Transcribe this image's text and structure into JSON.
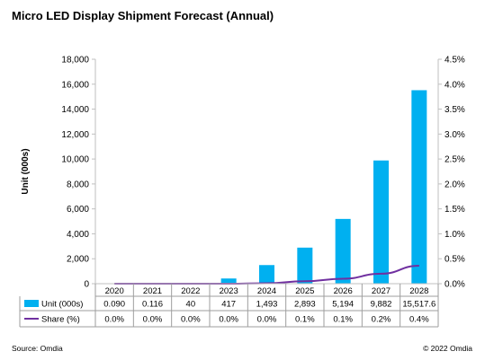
{
  "page": {
    "title": "Micro LED Display Shipment Forecast (Annual)",
    "source": "Source: Omdia",
    "copyright": "© 2022 Omdia"
  },
  "chart_data": {
    "type": "bar",
    "years": [
      "2020",
      "2021",
      "2022",
      "2023",
      "2024",
      "2025",
      "2026",
      "2027",
      "2028"
    ],
    "ylabel": "Unit (000s)",
    "ylim": [
      0,
      18000
    ],
    "y_ticks": [
      "0",
      "2,000",
      "4,000",
      "6,000",
      "8,000",
      "10,000",
      "12,000",
      "14,000",
      "16,000",
      "18,000"
    ],
    "y2lim": [
      0,
      4.5
    ],
    "y2_ticks": [
      "0.0%",
      "0.5%",
      "1.0%",
      "1.5%",
      "2.0%",
      "2.5%",
      "3.0%",
      "3.5%",
      "4.0%",
      "4.5%"
    ],
    "grid": false,
    "series": [
      {
        "name": "Unit (000s)",
        "kind": "bar",
        "axis": "left",
        "color": "#00b0f0",
        "values": [
          0.09,
          0.116,
          40,
          417,
          1493,
          2893,
          5194,
          9882,
          15517.6
        ],
        "labels": [
          "0.090",
          "0.116",
          "40",
          "417",
          "1,493",
          "2,893",
          "5,194",
          "9,882",
          "15,517.6"
        ]
      },
      {
        "name": "Share (%)",
        "kind": "line",
        "axis": "right",
        "color": "#7030a0",
        "values": [
          0.0,
          0.0,
          0.0,
          0.0,
          0.01,
          0.05,
          0.1,
          0.2,
          0.36
        ],
        "labels": [
          "0.0%",
          "0.0%",
          "0.0%",
          "0.0%",
          "0.0%",
          "0.1%",
          "0.1%",
          "0.2%",
          "0.4%"
        ]
      }
    ]
  }
}
